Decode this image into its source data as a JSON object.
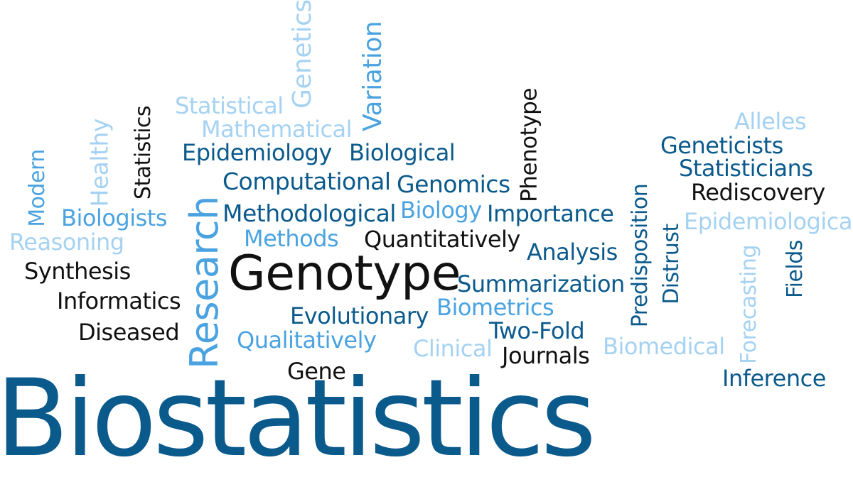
{
  "cloud": {
    "main": "Biostatistics",
    "words": {
      "genetics": "Genetics",
      "variation": "Variation",
      "statistical": "Statistical",
      "mathematical": "Mathematical",
      "statistics": "Statistics",
      "healthy": "Healthy",
      "modern": "Modern",
      "phenotype": "Phenotype",
      "alleles": "Alleles",
      "geneticists": "Geneticists",
      "statisticians": "Statisticians",
      "rediscovery": "Rediscovery",
      "epidemiology": "Epidemiology",
      "biological": "Biological",
      "computational": "Computational",
      "genomics": "Genomics",
      "research": "Research",
      "biologists": "Biologists",
      "methodological": "Methodological",
      "biology": "Biology",
      "importance": "Importance",
      "epidemiological": "Epidemiological",
      "reasoning": "Reasoning",
      "methods": "Methods",
      "quantitatively": "Quantitatively",
      "predisposition": "Predisposition",
      "distrust": "Distrust",
      "forecasting": "Forecasting",
      "fields": "Fields",
      "analysis": "Analysis",
      "synthesis": "Synthesis",
      "genotype": "Genotype",
      "summarization": "Summarization",
      "informatics": "Informatics",
      "biometrics": "Biometrics",
      "evolutionary": "Evolutionary",
      "diseased": "Diseased",
      "two_fold": "Two-Fold",
      "qualitatively": "Qualitatively",
      "clinical": "Clinical",
      "biomedical": "Biomedical",
      "journals": "Journals",
      "gene": "Gene",
      "inference": "Inference"
    },
    "colors": {
      "dark_blue": "#0b5a8c",
      "medium_blue": "#4aa3e0",
      "light_blue": "#a5d2f2",
      "black": "#111111",
      "background": "#ffffff"
    }
  }
}
